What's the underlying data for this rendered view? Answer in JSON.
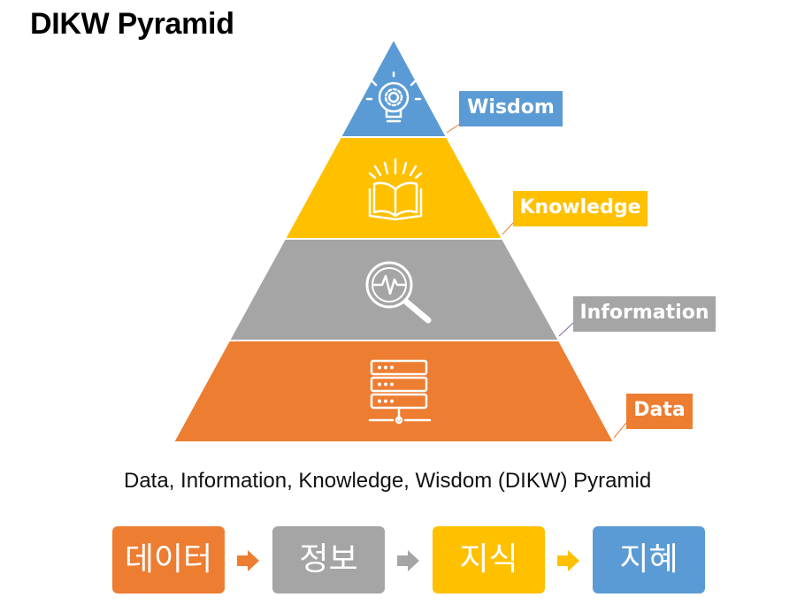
{
  "title": "DIKW Pyramid",
  "caption": "Data, Information, Knowledge, Wisdom (DIKW) Pyramid",
  "levels": [
    {
      "label": "Wisdom",
      "color": "#5b9bd5",
      "icon": "lightbulb-gear-icon"
    },
    {
      "label": "Knowledge",
      "color": "#ffc000",
      "icon": "open-book-icon"
    },
    {
      "label": "Information",
      "color": "#a5a5a5",
      "icon": "magnifier-pulse-icon"
    },
    {
      "label": "Data",
      "color": "#ed7d31",
      "icon": "server-icon"
    }
  ],
  "flow": [
    {
      "label": "데이터",
      "color": "#ed7d31"
    },
    {
      "label": "정보",
      "color": "#a5a5a5"
    },
    {
      "label": "지식",
      "color": "#ffc000"
    },
    {
      "label": "지혜",
      "color": "#5b9bd5"
    }
  ],
  "arrow_color": "#ed7d31",
  "arrow_alt_color": "#a5a5a5",
  "arrow_yellow_color": "#ffc000"
}
